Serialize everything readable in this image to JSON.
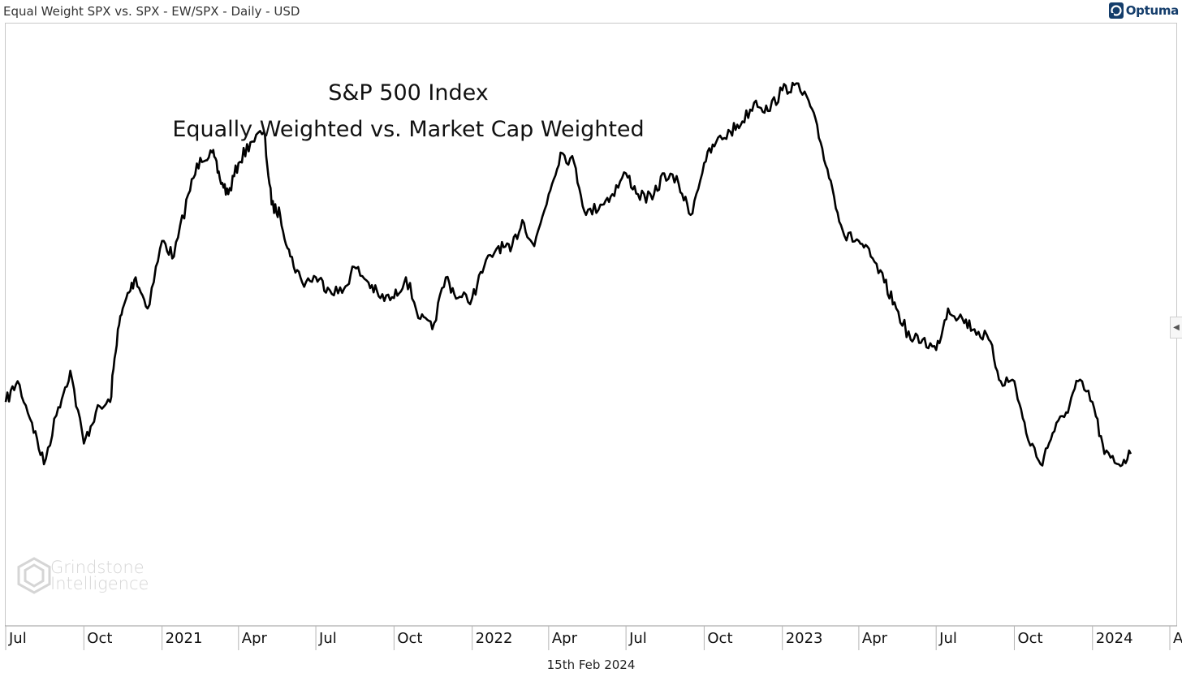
{
  "header": {
    "title": "Equal Weight SPX vs. SPX - EW/SPX - Daily - USD",
    "brand": "Optuma"
  },
  "footer": {
    "date": "15th Feb 2024"
  },
  "watermark": {
    "line1": "Grindstone",
    "line2": "Intelligence"
  },
  "colors": {
    "line": "#000000",
    "grid_border": "#c8c8c8",
    "brand": "#143d6b"
  },
  "chart_data": {
    "type": "line",
    "title": "S&P 500 Index",
    "subtitle": "Equally Weighted vs. Market Cap Weighted",
    "xlabel": "",
    "ylabel": "",
    "grid": false,
    "y_axis_shown": false,
    "x_tick_labels": [
      "Jul",
      "Oct",
      "2021",
      "Apr",
      "Jul",
      "Oct",
      "2022",
      "Apr",
      "Jul",
      "Oct",
      "2023",
      "Apr",
      "Jul",
      "Oct",
      "2024",
      "Apr"
    ],
    "x_tick_dates": [
      "2020-07-01",
      "2020-10-01",
      "2021-01-01",
      "2021-04-01",
      "2021-07-01",
      "2021-10-01",
      "2022-01-01",
      "2022-04-01",
      "2022-07-01",
      "2022-10-01",
      "2023-01-01",
      "2023-04-01",
      "2023-07-01",
      "2023-10-01",
      "2024-01-01",
      "2024-04-01"
    ],
    "xlim": [
      "2020-07-01",
      "2024-04-01"
    ],
    "ylim": [
      0,
      100
    ],
    "series": [
      {
        "values_note": "relative level read from plot; y axis unlabeled",
        "x": [
          "2020-07-01",
          "2020-07-15",
          "2020-08-01",
          "2020-08-15",
          "2020-09-01",
          "2020-09-15",
          "2020-10-01",
          "2020-10-15",
          "2020-11-01",
          "2020-11-10",
          "2020-11-20",
          "2020-12-01",
          "2020-12-15",
          "2021-01-01",
          "2021-01-15",
          "2021-02-01",
          "2021-02-15",
          "2021-03-01",
          "2021-03-10",
          "2021-03-20",
          "2021-04-01",
          "2021-04-15",
          "2021-05-01",
          "2021-05-10",
          "2021-05-20",
          "2021-06-01",
          "2021-06-15",
          "2021-07-01",
          "2021-07-15",
          "2021-08-01",
          "2021-08-15",
          "2021-09-01",
          "2021-09-15",
          "2021-10-01",
          "2021-10-15",
          "2021-11-01",
          "2021-11-15",
          "2021-12-01",
          "2021-12-15",
          "2022-01-01",
          "2022-01-15",
          "2022-02-01",
          "2022-02-15",
          "2022-03-01",
          "2022-03-15",
          "2022-04-01",
          "2022-04-15",
          "2022-05-01",
          "2022-05-15",
          "2022-06-01",
          "2022-06-15",
          "2022-07-01",
          "2022-07-15",
          "2022-08-01",
          "2022-08-15",
          "2022-09-01",
          "2022-09-15",
          "2022-10-01",
          "2022-10-15",
          "2022-11-01",
          "2022-11-15",
          "2022-12-01",
          "2022-12-15",
          "2023-01-01",
          "2023-01-15",
          "2023-02-01",
          "2023-02-15",
          "2023-03-01",
          "2023-03-15",
          "2023-04-01",
          "2023-04-15",
          "2023-05-01",
          "2023-05-15",
          "2023-06-01",
          "2023-06-15",
          "2023-07-01",
          "2023-07-15",
          "2023-08-01",
          "2023-08-15",
          "2023-09-01",
          "2023-09-15",
          "2023-10-01",
          "2023-10-15",
          "2023-11-01",
          "2023-11-15",
          "2023-12-01",
          "2023-12-15",
          "2024-01-01",
          "2024-01-15",
          "2024-02-01",
          "2024-02-15"
        ],
        "values": [
          32,
          36,
          28,
          20,
          31,
          38,
          24,
          30,
          32,
          46,
          52,
          56,
          50,
          63,
          60,
          72,
          79,
          80,
          75,
          72,
          78,
          82,
          84,
          70,
          68,
          60,
          55,
          56,
          54,
          53,
          58,
          55,
          52,
          52,
          56,
          48,
          46,
          56,
          52,
          52,
          58,
          62,
          61,
          67,
          62,
          72,
          80,
          78,
          68,
          70,
          72,
          76,
          72,
          71,
          76,
          74,
          68,
          78,
          82,
          84,
          86,
          90,
          88,
          92,
          93,
          90,
          82,
          73,
          64,
          63,
          60,
          55,
          50,
          44,
          44,
          42,
          50,
          48,
          46,
          44,
          36,
          36,
          26,
          20,
          26,
          30,
          36,
          32,
          22,
          20,
          22
        ]
      }
    ]
  }
}
